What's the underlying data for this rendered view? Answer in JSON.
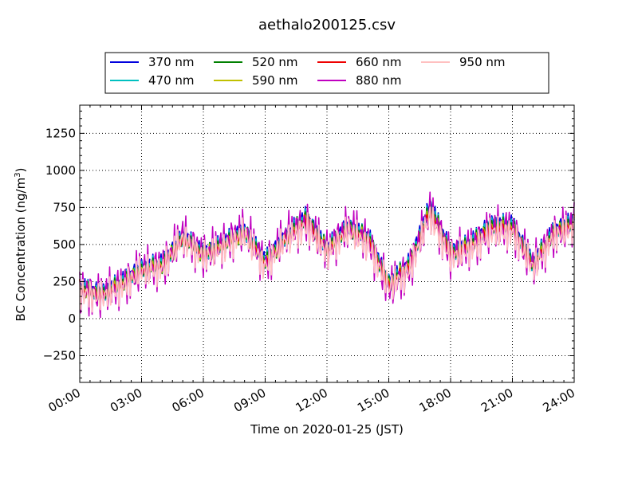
{
  "chart_data": {
    "type": "line",
    "title": "aethalo200125.csv",
    "xlabel": "Time on 2020-01-25 (JST)",
    "ylabel_main": "BC Concentration (ng/m",
    "ylabel_sup": "3",
    "ylabel_tail": ")",
    "xlim_hours": [
      0,
      24
    ],
    "ylim": [
      -430,
      1440
    ],
    "xticks": [
      {
        "hour": 0,
        "label": "00:00"
      },
      {
        "hour": 3,
        "label": "03:00"
      },
      {
        "hour": 6,
        "label": "06:00"
      },
      {
        "hour": 9,
        "label": "09:00"
      },
      {
        "hour": 12,
        "label": "12:00"
      },
      {
        "hour": 15,
        "label": "15:00"
      },
      {
        "hour": 18,
        "label": "18:00"
      },
      {
        "hour": 21,
        "label": "21:00"
      },
      {
        "hour": 24,
        "label": "24:00"
      }
    ],
    "yticks": [
      {
        "value": -250,
        "label": "−250"
      },
      {
        "value": 0,
        "label": "0"
      },
      {
        "value": 250,
        "label": "250"
      },
      {
        "value": 500,
        "label": "500"
      },
      {
        "value": 750,
        "label": "750"
      },
      {
        "value": 1000,
        "label": "1000"
      },
      {
        "value": 1250,
        "label": "1250"
      }
    ],
    "grid": true,
    "legend_position": "top-center",
    "hours": [
      0,
      1,
      2,
      3,
      4,
      5,
      6,
      7,
      8,
      9,
      10,
      11,
      12,
      13,
      14,
      15,
      16,
      17,
      18,
      19,
      20,
      21,
      22,
      23,
      24
    ],
    "series": [
      {
        "name": "370 nm",
        "color": "#0000dd",
        "values": [
          220,
          180,
          250,
          350,
          380,
          560,
          450,
          520,
          600,
          400,
          560,
          700,
          480,
          630,
          560,
          250,
          380,
          780,
          460,
          520,
          650,
          640,
          380,
          600,
          680
        ]
      },
      {
        "name": "470 nm",
        "color": "#00c0c0",
        "values": [
          210,
          170,
          240,
          340,
          370,
          550,
          440,
          510,
          590,
          390,
          550,
          690,
          470,
          620,
          550,
          240,
          370,
          760,
          450,
          510,
          640,
          630,
          370,
          590,
          660
        ]
      },
      {
        "name": "520 nm",
        "color": "#008000",
        "values": [
          205,
          168,
          236,
          332,
          365,
          545,
          436,
          505,
          585,
          385,
          545,
          684,
          466,
          614,
          545,
          236,
          366,
          750,
          446,
          505,
          632,
          624,
          366,
          584,
          654
        ]
      },
      {
        "name": "590 nm",
        "color": "#c0c000",
        "values": [
          200,
          165,
          232,
          328,
          362,
          540,
          432,
          500,
          580,
          380,
          540,
          678,
          462,
          608,
          540,
          232,
          362,
          742,
          442,
          500,
          626,
          618,
          362,
          578,
          648
        ]
      },
      {
        "name": "660 nm",
        "color": "#ee0000",
        "values": [
          198,
          162,
          230,
          325,
          360,
          536,
          430,
          498,
          578,
          378,
          536,
          675,
          460,
          605,
          538,
          230,
          360,
          738,
          440,
          498,
          622,
          615,
          360,
          576,
          645
        ]
      },
      {
        "name": "880 nm",
        "color": "#c000c0",
        "values": [
          190,
          150,
          220,
          330,
          350,
          560,
          420,
          500,
          600,
          360,
          560,
          640,
          450,
          620,
          520,
          200,
          330,
          720,
          420,
          480,
          600,
          600,
          350,
          560,
          630
        ]
      },
      {
        "name": "950 nm",
        "color": "#ffc0c0",
        "values": [
          180,
          140,
          210,
          320,
          340,
          540,
          410,
          480,
          570,
          350,
          530,
          620,
          440,
          590,
          500,
          210,
          320,
          690,
          410,
          470,
          580,
          580,
          340,
          550,
          610
        ]
      }
    ]
  }
}
